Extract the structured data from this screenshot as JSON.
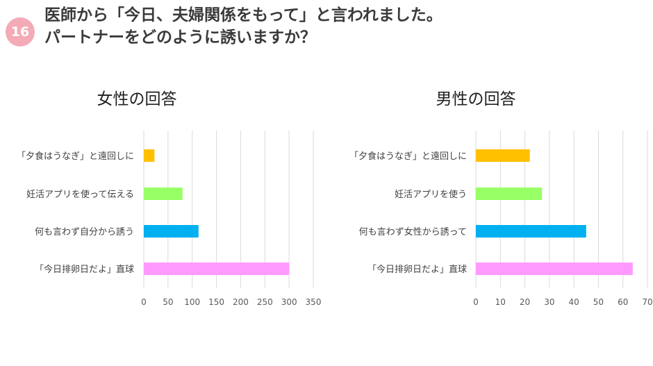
{
  "header": {
    "badge": "16",
    "line1": "医師から「今日、夫婦関係をもって」と言われました。",
    "line2": "パートナーをどのように誘いますか？"
  },
  "chart_data": [
    {
      "type": "bar",
      "orientation": "horizontal",
      "title": "女性の回答",
      "categories": [
        "「夕食はうなぎ」と遠回しに",
        "妊活アプリを使って伝える",
        "何も言わず自分から誘う",
        "「今日排卵日だよ」直球"
      ],
      "values": [
        22,
        80,
        113,
        300
      ],
      "colors": [
        "#ffc000",
        "#99ff66",
        "#00b0f0",
        "#ff99ff"
      ],
      "xlim": [
        0,
        350
      ],
      "ticks": [
        0,
        50,
        100,
        150,
        200,
        250,
        300,
        350
      ],
      "grid": true
    },
    {
      "type": "bar",
      "orientation": "horizontal",
      "title": "男性の回答",
      "categories": [
        "「夕食はうなぎ」と遠回しに",
        "妊活アプリを使う",
        "何も言わず女性から誘って",
        "「今日排卵日だよ」直球"
      ],
      "values": [
        22,
        27,
        45,
        64
      ],
      "colors": [
        "#ffc000",
        "#99ff66",
        "#00b0f0",
        "#ff99ff"
      ],
      "xlim": [
        0,
        70
      ],
      "ticks": [
        0,
        10,
        20,
        30,
        40,
        50,
        60,
        70
      ],
      "grid": true
    }
  ]
}
